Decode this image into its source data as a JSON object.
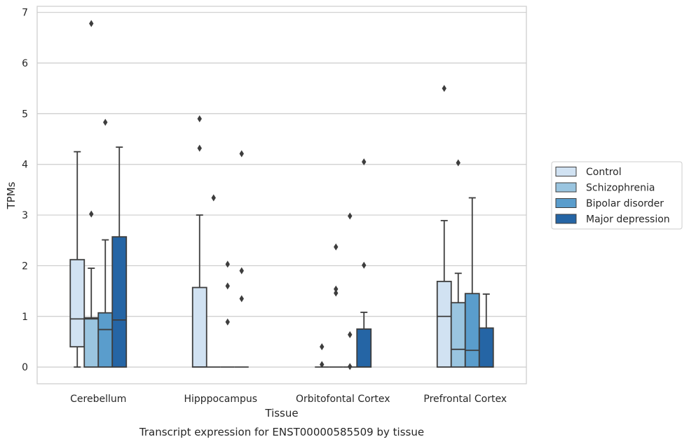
{
  "chart_data": {
    "type": "box",
    "xlabel": "Tissue",
    "ylabel": "TPMs",
    "caption": "Transcript expression for ENST00000585509 by tissue",
    "ylim": [
      -0.33,
      7.12
    ],
    "yticks": [
      "0",
      "1",
      "2",
      "3",
      "4",
      "5",
      "6",
      "7"
    ],
    "grid": "horizontal",
    "legend_position": "right",
    "categories": [
      "Cerebellum",
      "Hipppocampus",
      "Orbitofontal Cortex",
      "Prefrontal Cortex"
    ],
    "series": [
      {
        "name": "Control",
        "color": "#d1e2f2",
        "boxes": [
          {
            "q1": 0.4,
            "median": 0.95,
            "q3": 2.12,
            "whisker_low": 0,
            "whisker_high": 4.25,
            "outliers": []
          },
          {
            "q1": 0,
            "median": 0,
            "q3": 1.57,
            "whisker_low": 0,
            "whisker_high": 3.0,
            "outliers": [
              4.9,
              4.32
            ]
          },
          {
            "q1": 0,
            "median": 0,
            "q3": 0,
            "whisker_low": 0,
            "whisker_high": 0,
            "outliers": [
              0.4,
              0.05
            ]
          },
          {
            "q1": 0,
            "median": 1.0,
            "q3": 1.69,
            "whisker_low": 0,
            "whisker_high": 2.89,
            "outliers": [
              5.5
            ]
          }
        ]
      },
      {
        "name": "Schizophrenia",
        "color": "#9ac5e0",
        "boxes": [
          {
            "q1": 0,
            "median": 0.95,
            "q3": 0.97,
            "whisker_low": 0,
            "whisker_high": 1.95,
            "outliers": [
              6.78,
              3.02
            ]
          },
          {
            "q1": 0,
            "median": 0,
            "q3": 0,
            "whisker_low": 0,
            "whisker_high": 0,
            "outliers": [
              3.34
            ]
          },
          {
            "q1": 0,
            "median": 0,
            "q3": 0,
            "whisker_low": 0,
            "whisker_high": 0,
            "outliers": [
              2.37,
              1.54,
              1.46
            ]
          },
          {
            "q1": 0,
            "median": 0.35,
            "q3": 1.27,
            "whisker_low": 0,
            "whisker_high": 1.85,
            "outliers": [
              4.03
            ]
          }
        ]
      },
      {
        "name": "Bipolar disorder",
        "color": "#5a9dcc",
        "boxes": [
          {
            "q1": 0,
            "median": 0.74,
            "q3": 1.07,
            "whisker_low": 0,
            "whisker_high": 2.51,
            "outliers": [
              4.83
            ]
          },
          {
            "q1": 0,
            "median": 0,
            "q3": 0,
            "whisker_low": 0,
            "whisker_high": 0,
            "outliers": [
              2.03,
              1.6,
              0.89
            ]
          },
          {
            "q1": 0,
            "median": 0,
            "q3": 0,
            "whisker_low": 0,
            "whisker_high": 0,
            "outliers": [
              2.98,
              0.64,
              0.01
            ]
          },
          {
            "q1": 0,
            "median": 0.33,
            "q3": 1.45,
            "whisker_low": 0,
            "whisker_high": 3.34,
            "outliers": []
          }
        ]
      },
      {
        "name": "Major depression",
        "color": "#2565a5",
        "boxes": [
          {
            "q1": 0,
            "median": 0.93,
            "q3": 2.57,
            "whisker_low": 0,
            "whisker_high": 4.34,
            "outliers": []
          },
          {
            "q1": 0,
            "median": 0,
            "q3": 0,
            "whisker_low": 0,
            "whisker_high": 0,
            "outliers": [
              4.21,
              1.9,
              1.35
            ]
          },
          {
            "q1": 0,
            "median": 0,
            "q3": 0.75,
            "whisker_low": 0,
            "whisker_high": 1.08,
            "outliers": [
              4.05,
              2.01
            ]
          },
          {
            "q1": 0,
            "median": 0,
            "q3": 0.77,
            "whisker_low": 0,
            "whisker_high": 1.44,
            "outliers": []
          }
        ]
      }
    ]
  }
}
